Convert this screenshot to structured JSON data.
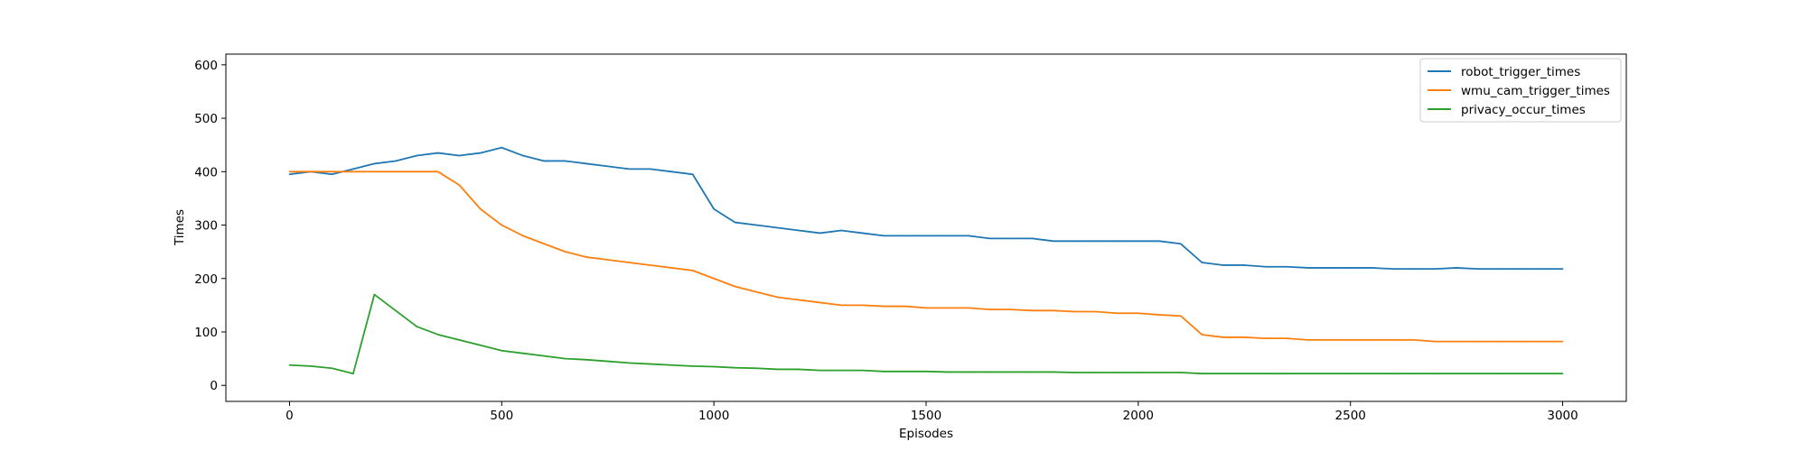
{
  "chart_data": {
    "type": "line",
    "title": "",
    "xlabel": "Episodes",
    "ylabel": "Times",
    "xlim": [
      -150,
      3150
    ],
    "ylim": [
      -30,
      620
    ],
    "xticks": [
      0,
      500,
      1000,
      1500,
      2000,
      2500,
      3000
    ],
    "xtick_labels": [
      "0",
      "500",
      "1000",
      "1500",
      "2000",
      "2500",
      "3000"
    ],
    "yticks": [
      0,
      100,
      200,
      300,
      400,
      500,
      600
    ],
    "ytick_labels": [
      "0",
      "100",
      "200",
      "300",
      "400",
      "500",
      "600"
    ],
    "grid": false,
    "legend_position": "top-right",
    "x": [
      0,
      50,
      100,
      150,
      200,
      250,
      300,
      350,
      400,
      450,
      500,
      550,
      600,
      650,
      700,
      750,
      800,
      850,
      900,
      950,
      1000,
      1050,
      1100,
      1150,
      1200,
      1250,
      1300,
      1350,
      1400,
      1450,
      1500,
      1550,
      1600,
      1650,
      1700,
      1750,
      1800,
      1850,
      1900,
      1950,
      2000,
      2050,
      2100,
      2150,
      2200,
      2250,
      2300,
      2350,
      2400,
      2450,
      2500,
      2550,
      2600,
      2650,
      2700,
      2750,
      2800,
      2850,
      2900,
      2950,
      3000
    ],
    "series": [
      {
        "name": "robot_trigger_times",
        "color": "#1f77b4",
        "values": [
          395,
          400,
          395,
          405,
          415,
          420,
          430,
          435,
          430,
          435,
          445,
          430,
          420,
          420,
          415,
          410,
          405,
          405,
          400,
          395,
          330,
          305,
          300,
          295,
          290,
          285,
          290,
          285,
          280,
          280,
          280,
          280,
          280,
          275,
          275,
          275,
          270,
          270,
          270,
          270,
          270,
          270,
          265,
          230,
          225,
          225,
          222,
          222,
          220,
          220,
          220,
          220,
          218,
          218,
          218,
          220,
          218,
          218,
          218,
          218,
          218
        ]
      },
      {
        "name": "wmu_cam_trigger_times",
        "color": "#ff7f0e",
        "values": [
          400,
          400,
          400,
          400,
          400,
          400,
          400,
          400,
          375,
          330,
          300,
          280,
          265,
          250,
          240,
          235,
          230,
          225,
          220,
          215,
          200,
          185,
          175,
          165,
          160,
          155,
          150,
          150,
          148,
          148,
          145,
          145,
          145,
          142,
          142,
          140,
          140,
          138,
          138,
          135,
          135,
          132,
          130,
          95,
          90,
          90,
          88,
          88,
          85,
          85,
          85,
          85,
          85,
          85,
          82,
          82,
          82,
          82,
          82,
          82,
          82
        ]
      },
      {
        "name": "privacy_occur_times",
        "color": "#2ca02c",
        "values": [
          38,
          36,
          32,
          22,
          170,
          140,
          110,
          95,
          85,
          75,
          65,
          60,
          55,
          50,
          48,
          45,
          42,
          40,
          38,
          36,
          35,
          33,
          32,
          30,
          30,
          28,
          28,
          28,
          26,
          26,
          26,
          25,
          25,
          25,
          25,
          25,
          25,
          24,
          24,
          24,
          24,
          24,
          24,
          22,
          22,
          22,
          22,
          22,
          22,
          22,
          22,
          22,
          22,
          22,
          22,
          22,
          22,
          22,
          22,
          22,
          22
        ]
      }
    ]
  }
}
